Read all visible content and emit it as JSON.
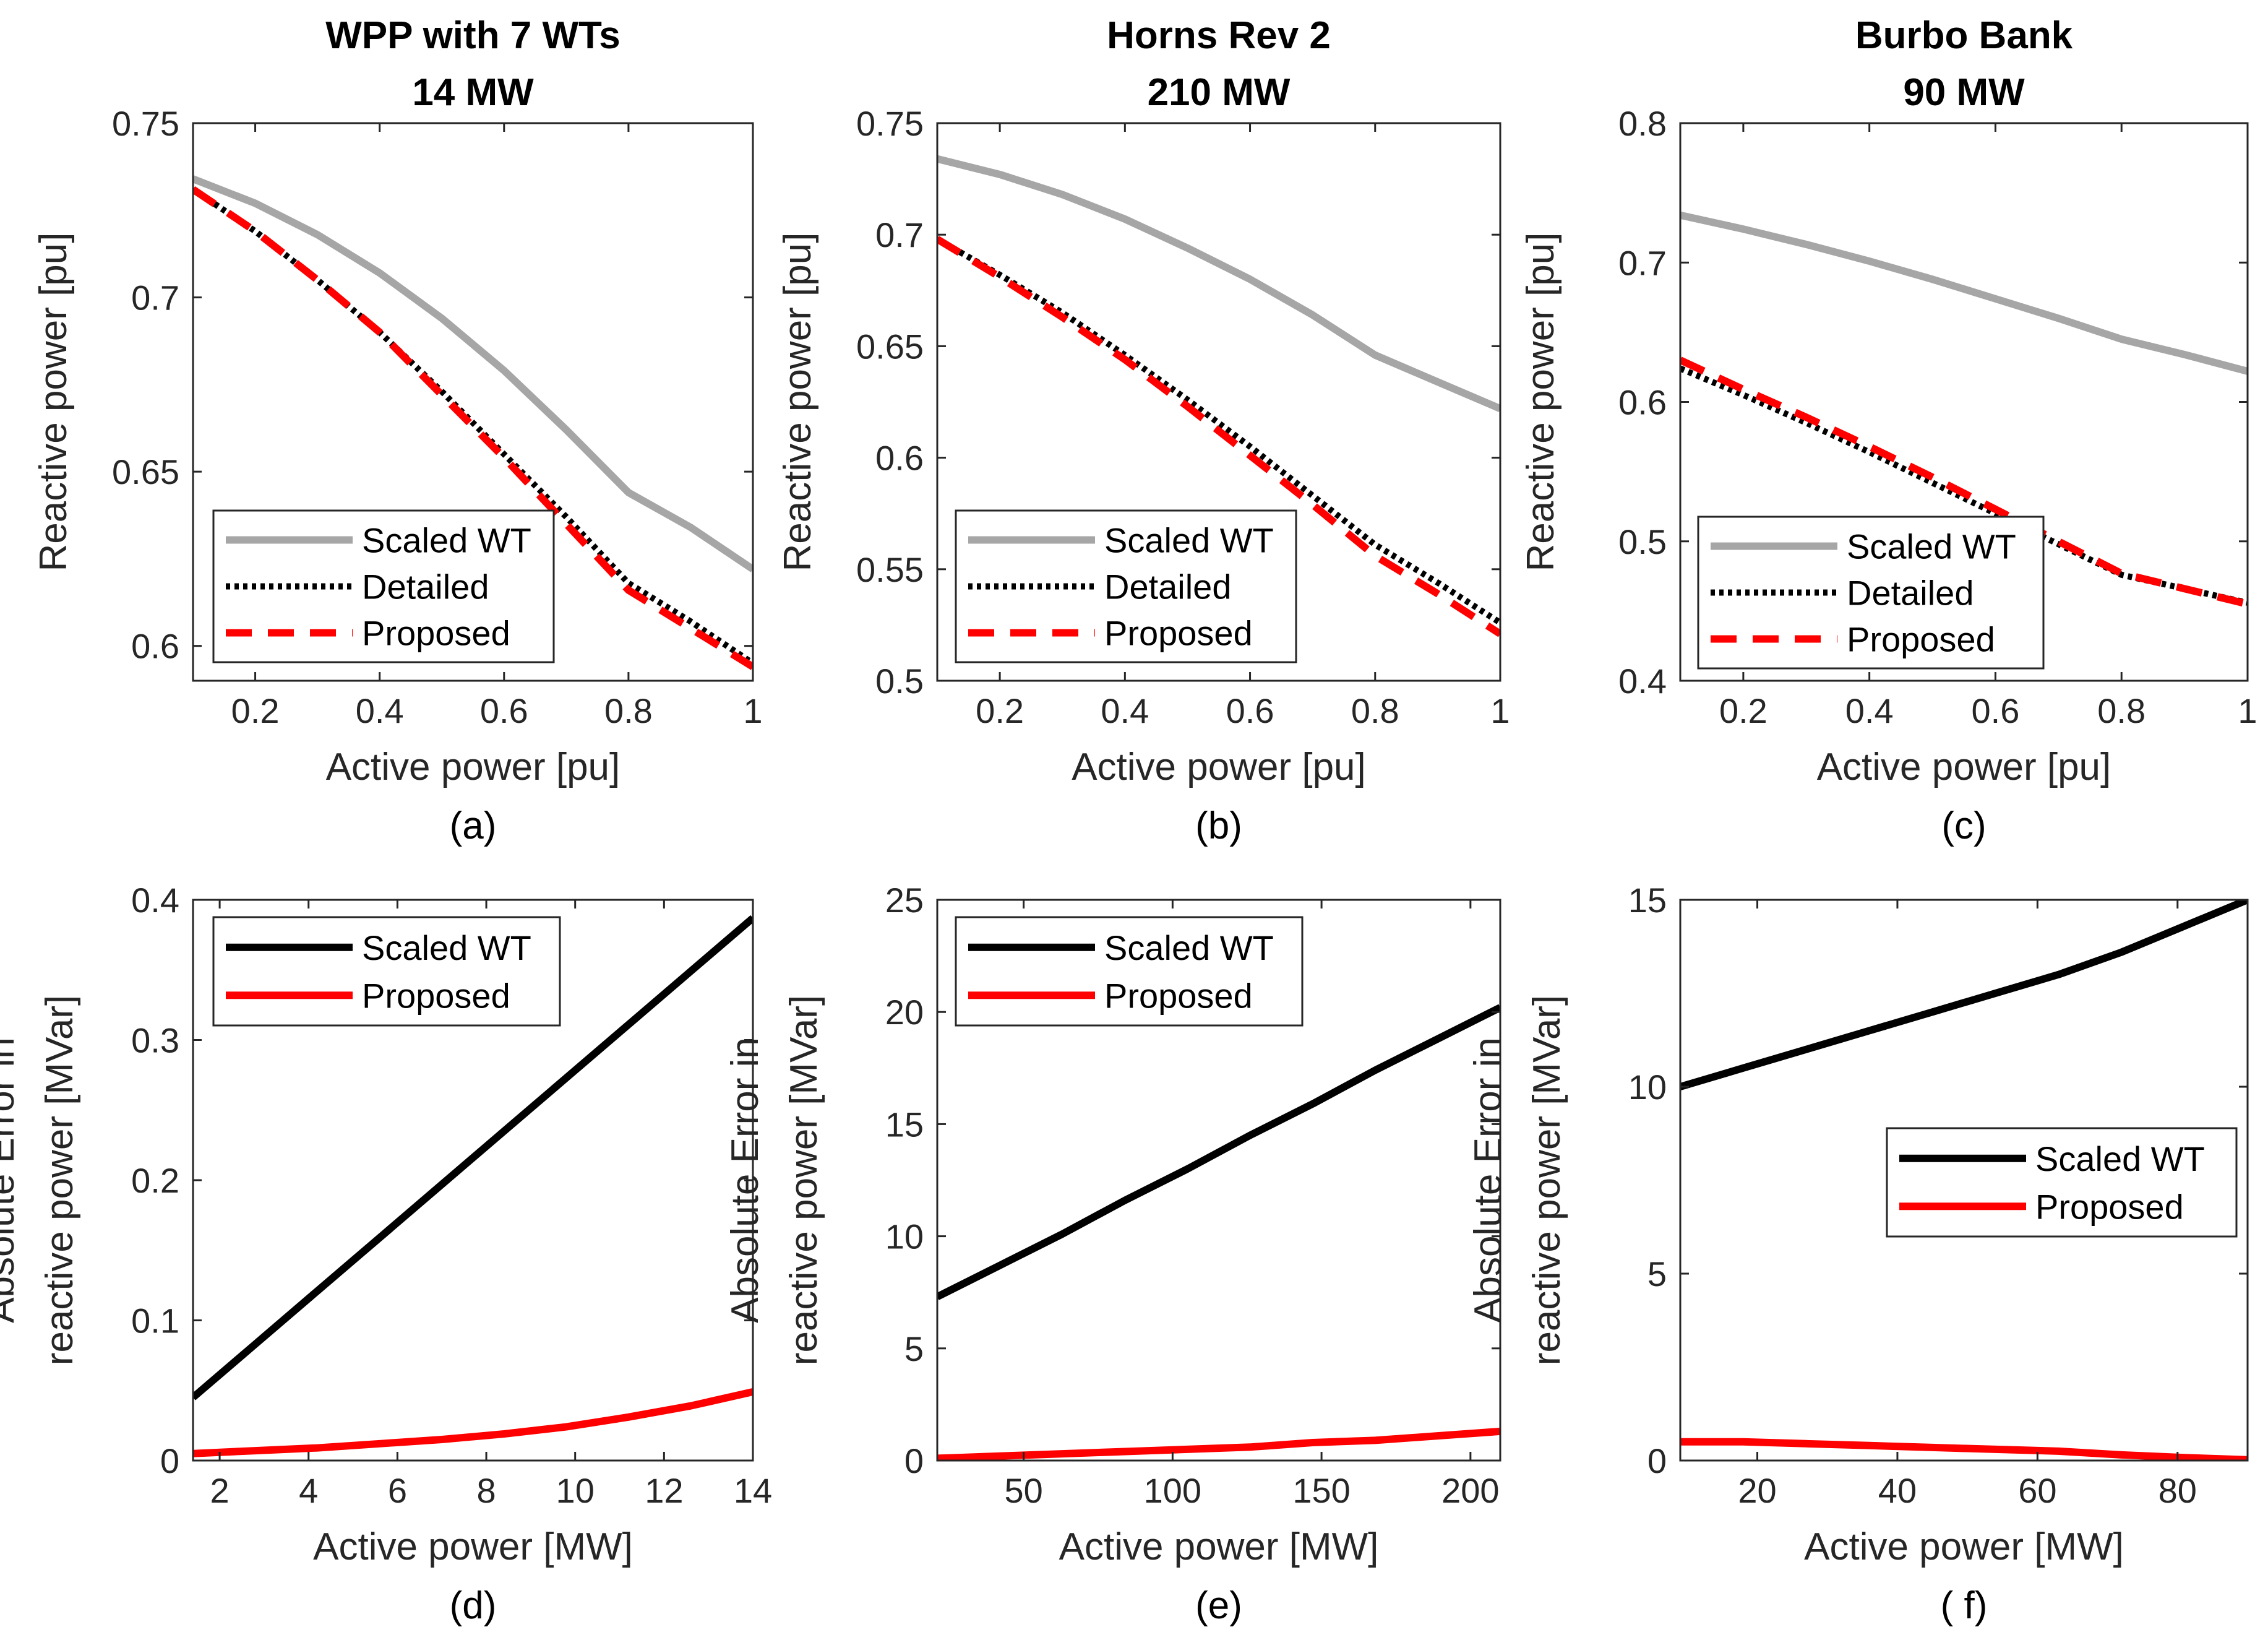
{
  "chart_data": [
    {
      "type": "line",
      "panel": "a",
      "caption": "(a)",
      "title": [
        "WPP with 7 WTs",
        "14 MW"
      ],
      "xlabel": "Active power [pu]",
      "ylabel": [
        "Reactive power [pu]"
      ],
      "xlim": [
        0.1,
        1
      ],
      "ylim": [
        0.59,
        0.75
      ],
      "xticks": [
        0.2,
        0.4,
        0.6,
        0.8,
        1
      ],
      "xtick_labels": [
        "0.2",
        "0.4",
        "0.6",
        "0.8",
        "1"
      ],
      "yticks": [
        0.6,
        0.65,
        0.7,
        0.75
      ],
      "ytick_labels": [
        "0.6",
        "0.65",
        "0.7",
        "0.75"
      ],
      "legend_position": "bottom-left",
      "x": [
        0.1,
        0.2,
        0.3,
        0.4,
        0.5,
        0.6,
        0.7,
        0.8,
        0.9,
        1.0
      ],
      "series": [
        {
          "name": "Scaled WT",
          "style": "solid",
          "color": "#a6a6a6",
          "values": [
            0.734,
            0.727,
            0.718,
            0.707,
            0.694,
            0.679,
            0.662,
            0.644,
            0.634,
            0.622
          ]
        },
        {
          "name": "Detailed",
          "style": "dotted",
          "color": "#000000",
          "values": [
            0.731,
            0.719,
            0.705,
            0.69,
            0.673,
            0.655,
            0.637,
            0.618,
            0.607,
            0.595
          ]
        },
        {
          "name": "Proposed",
          "style": "dashed",
          "color": "#ff0000",
          "values": [
            0.731,
            0.719,
            0.705,
            0.69,
            0.672,
            0.654,
            0.635,
            0.616,
            0.605,
            0.594
          ]
        }
      ]
    },
    {
      "type": "line",
      "panel": "b",
      "caption": "(b)",
      "title": [
        "Horns Rev 2",
        "210 MW"
      ],
      "xlabel": "Active power [pu]",
      "ylabel": [
        "Reactive power [pu]"
      ],
      "xlim": [
        0.1,
        1
      ],
      "ylim": [
        0.5,
        0.75
      ],
      "xticks": [
        0.2,
        0.4,
        0.6,
        0.8,
        1
      ],
      "xtick_labels": [
        "0.2",
        "0.4",
        "0.6",
        "0.8",
        "1"
      ],
      "yticks": [
        0.5,
        0.55,
        0.6,
        0.65,
        0.7,
        0.75
      ],
      "ytick_labels": [
        "0.5",
        "0.55",
        "0.6",
        "0.65",
        "0.7",
        "0.75"
      ],
      "legend_position": "bottom-left",
      "x": [
        0.1,
        0.2,
        0.3,
        0.4,
        0.5,
        0.6,
        0.7,
        0.8,
        0.9,
        1.0
      ],
      "series": [
        {
          "name": "Scaled WT",
          "style": "solid",
          "color": "#a6a6a6",
          "values": [
            0.734,
            0.727,
            0.718,
            0.707,
            0.694,
            0.68,
            0.664,
            0.646,
            0.634,
            0.622
          ]
        },
        {
          "name": "Detailed",
          "style": "dotted",
          "color": "#000000",
          "values": [
            0.698,
            0.682,
            0.665,
            0.646,
            0.626,
            0.605,
            0.583,
            0.561,
            0.544,
            0.526
          ]
        },
        {
          "name": "Proposed",
          "style": "dashed",
          "color": "#ff0000",
          "values": [
            0.698,
            0.681,
            0.663,
            0.644,
            0.623,
            0.601,
            0.579,
            0.556,
            0.539,
            0.521
          ]
        }
      ]
    },
    {
      "type": "line",
      "panel": "c",
      "caption": "(c)",
      "title": [
        "Burbo Bank",
        "90 MW"
      ],
      "xlabel": "Active power [pu]",
      "ylabel": [
        "Reactive power [pu]"
      ],
      "xlim": [
        0.1,
        1
      ],
      "ylim": [
        0.4,
        0.8
      ],
      "xticks": [
        0.2,
        0.4,
        0.6,
        0.8,
        1
      ],
      "xtick_labels": [
        "0.2",
        "0.4",
        "0.6",
        "0.8",
        "1"
      ],
      "yticks": [
        0.4,
        0.5,
        0.6,
        0.7,
        0.8
      ],
      "ytick_labels": [
        "0.4",
        "0.5",
        "0.6",
        "0.7",
        "0.8"
      ],
      "legend_position": "bottom-left",
      "x": [
        0.1,
        0.2,
        0.3,
        0.4,
        0.5,
        0.6,
        0.7,
        0.8,
        0.9,
        1.0
      ],
      "series": [
        {
          "name": "Scaled WT",
          "style": "solid",
          "color": "#a6a6a6",
          "values": [
            0.734,
            0.724,
            0.713,
            0.701,
            0.688,
            0.674,
            0.66,
            0.645,
            0.634,
            0.622
          ]
        },
        {
          "name": "Detailed",
          "style": "dotted",
          "color": "#000000",
          "values": [
            0.624,
            0.605,
            0.585,
            0.564,
            0.542,
            0.52,
            0.498,
            0.476,
            0.466,
            0.456
          ]
        },
        {
          "name": "Proposed",
          "style": "dashed",
          "color": "#ff0000",
          "values": [
            0.63,
            0.609,
            0.589,
            0.568,
            0.546,
            0.523,
            0.5,
            0.477,
            0.466,
            0.455
          ]
        }
      ]
    },
    {
      "type": "line",
      "panel": "d",
      "caption": "(d)",
      "title": [],
      "xlabel": "Active power [MW]",
      "ylabel": [
        "Absolute Error in",
        "reactive power [MVar]"
      ],
      "xlim": [
        1.4,
        14
      ],
      "ylim": [
        0,
        0.4
      ],
      "xticks": [
        2,
        4,
        6,
        8,
        10,
        12,
        14
      ],
      "xtick_labels": [
        "2",
        "4",
        "6",
        "8",
        "10",
        "12",
        "14"
      ],
      "yticks": [
        0,
        0.1,
        0.2,
        0.3,
        0.4
      ],
      "ytick_labels": [
        "0",
        "0.1",
        "0.2",
        "0.3",
        "0.4"
      ],
      "legend_position": "top-left",
      "x": [
        1.4,
        2.8,
        4.2,
        5.6,
        7.0,
        8.4,
        9.8,
        11.2,
        12.6,
        14.0
      ],
      "series": [
        {
          "name": "Scaled WT",
          "style": "solid",
          "color": "#000000",
          "values": [
            0.045,
            0.083,
            0.121,
            0.159,
            0.197,
            0.235,
            0.273,
            0.311,
            0.349,
            0.387
          ]
        },
        {
          "name": "Proposed",
          "style": "solid",
          "color": "#ff0000",
          "values": [
            0.005,
            0.007,
            0.009,
            0.012,
            0.015,
            0.019,
            0.024,
            0.031,
            0.039,
            0.049
          ]
        }
      ]
    },
    {
      "type": "line",
      "panel": "e",
      "caption": "(e)",
      "title": [],
      "xlabel": "Active power [MW]",
      "ylabel": [
        "Absolute Error in",
        "reactive power [MVar]"
      ],
      "xlim": [
        21,
        210
      ],
      "ylim": [
        0,
        25
      ],
      "xticks": [
        50,
        100,
        150,
        200
      ],
      "xtick_labels": [
        "50",
        "100",
        "150",
        "200"
      ],
      "yticks": [
        0,
        5,
        10,
        15,
        20,
        25
      ],
      "ytick_labels": [
        "0",
        "5",
        "10",
        "15",
        "20",
        "25"
      ],
      "legend_position": "top-left",
      "x": [
        21,
        42,
        63,
        84,
        105,
        126,
        147,
        168,
        189,
        210
      ],
      "series": [
        {
          "name": "Scaled WT",
          "style": "solid",
          "color": "#000000",
          "values": [
            7.3,
            8.7,
            10.1,
            11.6,
            13.0,
            14.5,
            15.9,
            17.4,
            18.8,
            20.2
          ]
        },
        {
          "name": "Proposed",
          "style": "solid",
          "color": "#ff0000",
          "values": [
            0.1,
            0.2,
            0.3,
            0.4,
            0.5,
            0.6,
            0.8,
            0.9,
            1.1,
            1.3
          ]
        }
      ]
    },
    {
      "type": "line",
      "panel": "f",
      "caption": "( f)",
      "title": [],
      "xlabel": "Active power [MW]",
      "ylabel": [
        "Absolute Error in",
        "reactive power [MVar]"
      ],
      "xlim": [
        9,
        90
      ],
      "ylim": [
        0,
        15
      ],
      "xticks": [
        20,
        40,
        60,
        80
      ],
      "xtick_labels": [
        "20",
        "40",
        "60",
        "80"
      ],
      "yticks": [
        0,
        5,
        10,
        15
      ],
      "ytick_labels": [
        "0",
        "5",
        "10",
        "15"
      ],
      "legend_position": "right",
      "x": [
        9,
        18,
        27,
        36,
        45,
        54,
        63,
        72,
        81,
        90
      ],
      "series": [
        {
          "name": "Scaled WT",
          "style": "solid",
          "color": "#000000",
          "values": [
            10.0,
            10.5,
            11.0,
            11.5,
            12.0,
            12.5,
            13.0,
            13.6,
            14.3,
            15.0
          ]
        },
        {
          "name": "Proposed",
          "style": "solid",
          "color": "#ff0000",
          "values": [
            0.5,
            0.5,
            0.45,
            0.4,
            0.35,
            0.3,
            0.25,
            0.15,
            0.08,
            0.02
          ]
        }
      ]
    }
  ]
}
